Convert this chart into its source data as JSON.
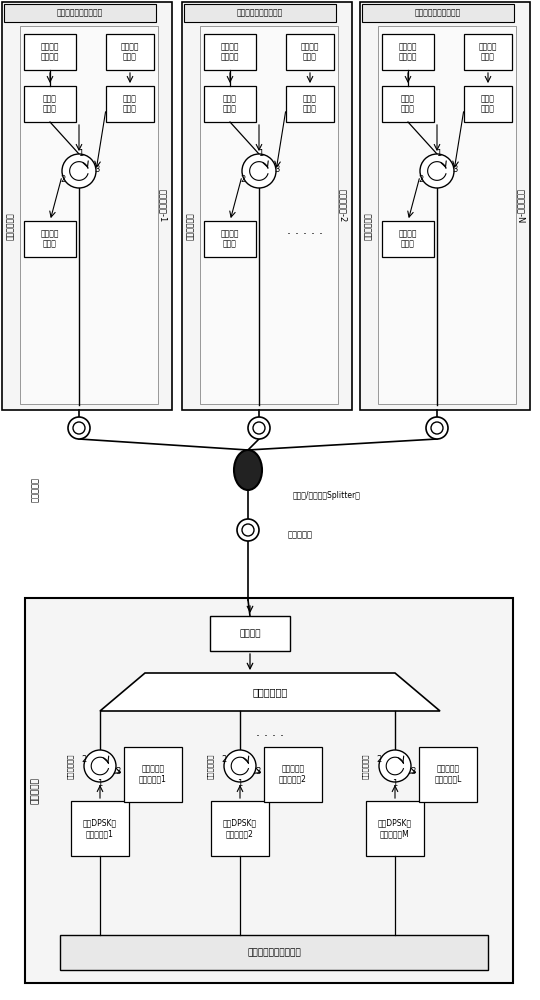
{
  "bg_color": "#ffffff",
  "onu_labels": [
    "光网络单元-1",
    "光网络单元-2",
    "光网络单元-N"
  ],
  "mac_labels_top": [
    "第一媒体介质控制模块",
    "第二媒体介质控制模块",
    "第三媒体介质控制模块"
  ],
  "mac_label_bottom": "第一媒体介质控制模块",
  "olt_label": "光线路终端",
  "mux_label": "光波分复用器",
  "amp_label": "光放大器",
  "splitter_label": "光分路/合路器（Splitter）",
  "dist_fiber_label": "分布式光纤",
  "feed_fiber_label": "馈线式光纤",
  "down_data_proc": "下行数据\n信号处理",
  "up_data_src": "上行数据\n信号源",
  "tunable_filter": "光可调\n滤波器",
  "direct_mod_laser": "直调制\n激光器",
  "second_circulator": "第二光环行器",
  "periodic_filter": "光周期性\n滤波器",
  "first_circulator": "第一光环行器",
  "dpsk_tx_labels": [
    "下行DPSK信\n号发射模块1",
    "下行DPSK信\n号发射模剗2",
    "下行DPSK信\n号发射模块M"
  ],
  "up_rx_labels": [
    "上行数据信\n号接收模块1",
    "上行数据信\n号接收模块2",
    "上行数据信\n号接收模块L"
  ]
}
